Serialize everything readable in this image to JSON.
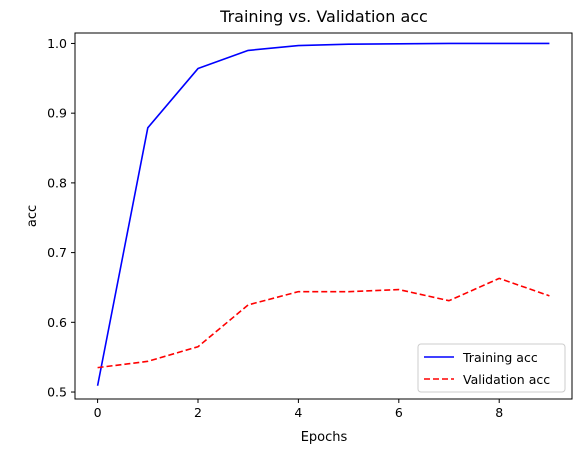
{
  "chart_data": {
    "type": "line",
    "title": "Training vs. Validation acc",
    "xlabel": "Epochs",
    "ylabel": "acc",
    "xlim": [
      -0.45,
      9.45
    ],
    "ylim": [
      0.49,
      1.015
    ],
    "xticks": [
      0,
      2,
      4,
      6,
      8
    ],
    "yticks": [
      0.5,
      0.6,
      0.7,
      0.8,
      0.9,
      1.0
    ],
    "ytick_labels": [
      "0.5",
      "0.6",
      "0.7",
      "0.8",
      "0.9",
      "1.0"
    ],
    "x": [
      0,
      1,
      2,
      3,
      4,
      5,
      6,
      7,
      8,
      9
    ],
    "grid": false,
    "legend_position": "lower-right",
    "series": [
      {
        "name": "Training acc",
        "color": "#0000ff",
        "style": "solid",
        "values": [
          0.509,
          0.879,
          0.964,
          0.99,
          0.997,
          0.999,
          0.9995,
          1.0,
          1.0,
          1.0
        ]
      },
      {
        "name": "Validation acc",
        "color": "#ff0000",
        "style": "dashed",
        "values": [
          0.535,
          0.544,
          0.565,
          0.625,
          0.644,
          0.644,
          0.647,
          0.631,
          0.663,
          0.638
        ]
      }
    ]
  }
}
